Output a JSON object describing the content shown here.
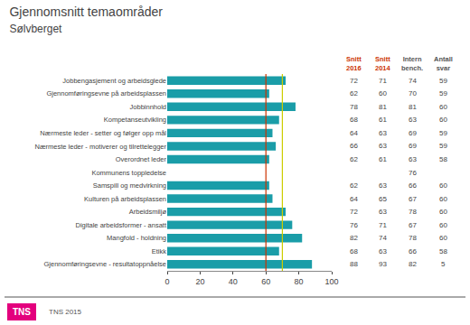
{
  "chart_data": {
    "type": "bar",
    "orientation": "horizontal",
    "title": "Gjennomsnitt temaområder",
    "subtitle": "Sølvberget",
    "categories": [
      "Jobbengasjement og arbeidsglede",
      "Gjennomføringsevne på arbeidsplassen",
      "Jobbinnhold",
      "Kompetanseutvikling",
      "Nærmeste leder - setter og følger opp mål",
      "Nærmeste leder - motiverer og tilrettelegger",
      "Overordnet leder",
      "Kommunens toppledelse",
      "Samspill og medvirkning",
      "Kulturen på arbeidsplassen",
      "Arbeidsmiljø",
      "Digitale arbeidsformer - ansatt",
      "Mangfold - holdning",
      "Etikk",
      "Gjennomføringsevne - resultatoppnåelse"
    ],
    "values": [
      72,
      62,
      78,
      68,
      64,
      66,
      62,
      0,
      62,
      64,
      72,
      76,
      82,
      68,
      88
    ],
    "color": "#1A9DA8",
    "xlim": [
      0,
      100
    ],
    "xticks": [
      0,
      20,
      40,
      60,
      80,
      100
    ],
    "grid": false,
    "vlines": [
      {
        "value": 60,
        "color": "#CC3300"
      },
      {
        "value": 70,
        "color": "#CCCC00"
      }
    ],
    "table": [
      {
        "header": "Snitt\n2016",
        "color": "#CC3300",
        "values": [
          72,
          62,
          78,
          68,
          64,
          66,
          62,
          null,
          62,
          64,
          72,
          76,
          82,
          68,
          88
        ]
      },
      {
        "header": "Snitt\n2014",
        "color": "#CC3300",
        "values": [
          71,
          60,
          81,
          61,
          63,
          63,
          61,
          null,
          63,
          65,
          63,
          71,
          74,
          63,
          93
        ]
      },
      {
        "header": "Intern\nbench.",
        "color": "#555555",
        "values": [
          74,
          70,
          81,
          63,
          69,
          69,
          63,
          76,
          66,
          67,
          78,
          67,
          78,
          66,
          82
        ]
      },
      {
        "header": "Antall\nsvar",
        "color": "#555555",
        "values": [
          59,
          59,
          60,
          60,
          59,
          59,
          58,
          null,
          60,
          60,
          60,
          60,
          60,
          58,
          5
        ]
      }
    ],
    "footer": "TNS 2015",
    "logo": {
      "text": "TNS",
      "color": "#E3007D"
    }
  }
}
